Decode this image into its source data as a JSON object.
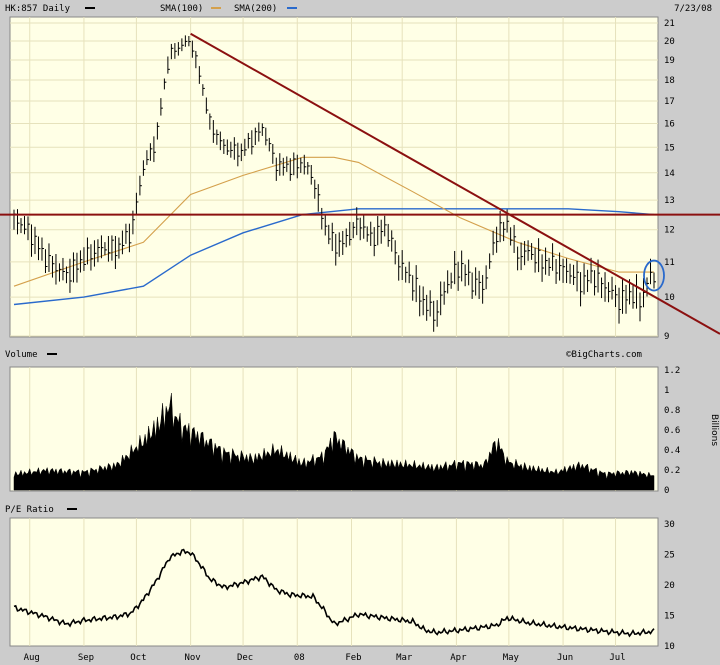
{
  "header": {
    "symbol_label": "HK:857 Daily",
    "sma100_label": "SMA(100)",
    "sma200_label": "SMA(200)",
    "date": "7/23/08",
    "watermark": "©BigCharts.com"
  },
  "colors": {
    "panel_bg": "#ffffe6",
    "frame_bg": "#cccccc",
    "price": "#000000",
    "sma100": "#d4a04c",
    "sma200": "#2a6acc",
    "trendline": "#8b1010",
    "highlight": "#2a6acc"
  },
  "volume_panel": {
    "label": "Volume",
    "unit_label": "Billions"
  },
  "pe_panel": {
    "label": "P/E Ratio"
  },
  "x_axis": {
    "months": [
      "Aug",
      "Sep",
      "Oct",
      "Nov",
      "Dec",
      "08",
      "Feb",
      "Mar",
      "Apr",
      "May",
      "Jun",
      "Jul"
    ]
  },
  "chart_data": [
    {
      "type": "line",
      "title": "HK:857 Daily",
      "ylim": [
        9,
        21
      ],
      "y_ticks": [
        "9",
        "10",
        "11",
        "12",
        "13",
        "14",
        "15",
        "16",
        "17",
        "18",
        "19",
        "20",
        "21"
      ],
      "scale": "log",
      "series": [
        {
          "name": "HK:857 Daily",
          "style": "ohlc",
          "x": [
            "Jul 23 07",
            "Aug 1",
            "Aug 10",
            "Aug 17",
            "Aug 22",
            "Sep 1",
            "Sep 10",
            "Sep 20",
            "Sep 28",
            "Oct 5",
            "Oct 12",
            "Oct 20",
            "Oct 27",
            "Nov 1",
            "Nov 6",
            "Nov 12",
            "Nov 20",
            "Nov 30",
            "Dec 7",
            "Dec 12",
            "Dec 20",
            "Dec 28",
            "Jan 4",
            "Jan 10",
            "Jan 16",
            "Jan 22",
            "Jan 28",
            "Feb 5",
            "Feb 12",
            "Feb 20",
            "Feb 28",
            "Mar 7",
            "Mar 14",
            "Mar 20",
            "Mar 25",
            "Apr 3",
            "Apr 10",
            "Apr 17",
            "Apr 24",
            "Apr 30",
            "May 6",
            "May 12",
            "May 20",
            "May 28",
            "Jun 4",
            "Jun 11",
            "Jun 18",
            "Jun 25",
            "Jul 3",
            "Jul 10",
            "Jul 15",
            "Jul 21",
            "Jul 23"
          ],
          "values": [
            12.4,
            11.9,
            11.1,
            10.8,
            10.6,
            11.1,
            11.4,
            11.4,
            11.9,
            14.2,
            15.2,
            19.3,
            19.8,
            20.0,
            18.3,
            16.0,
            15.0,
            14.8,
            15.4,
            15.8,
            14.3,
            14.2,
            14.4,
            13.8,
            12.2,
            11.5,
            11.6,
            12.3,
            11.7,
            12.1,
            11.0,
            10.4,
            9.8,
            9.5,
            10.2,
            10.9,
            10.4,
            10.3,
            11.9,
            12.2,
            11.2,
            11.3,
            11.0,
            10.9,
            10.7,
            10.4,
            10.6,
            10.3,
            9.9,
            10.1,
            9.9,
            10.6,
            10.5
          ]
        },
        {
          "name": "SMA(100)",
          "x": [
            "Jul 23 07",
            "Sep 1",
            "Oct 5",
            "Nov 1",
            "Dec 1",
            "Jan 4",
            "Jan 22",
            "Feb 5",
            "Mar 7",
            "Apr 3",
            "May 6",
            "Jun 4",
            "Jul 3",
            "Jul 23"
          ],
          "values": [
            10.3,
            11.0,
            11.6,
            13.2,
            13.9,
            14.6,
            14.6,
            14.4,
            13.3,
            12.4,
            11.6,
            11.1,
            10.7,
            10.7
          ]
        },
        {
          "name": "SMA(200)",
          "x": [
            "Jul 23 07",
            "Sep 1",
            "Oct 5",
            "Nov 1",
            "Dec 1",
            "Jan 4",
            "Feb 5",
            "Mar 7",
            "Apr 3",
            "May 6",
            "Jun 4",
            "Jul 3",
            "Jul 23"
          ],
          "values": [
            9.8,
            10.0,
            10.3,
            11.2,
            11.9,
            12.5,
            12.7,
            12.7,
            12.7,
            12.7,
            12.7,
            12.6,
            12.5
          ]
        }
      ],
      "annotations": [
        {
          "kind": "trendline",
          "from": [
            "Nov 1",
            20.4
          ],
          "to": [
            "Jul 30",
            9.3
          ]
        },
        {
          "kind": "horizontal",
          "value": 12.5
        },
        {
          "kind": "ellipse",
          "at": [
            "Jul 23",
            10.6
          ]
        }
      ]
    },
    {
      "type": "area",
      "title": "Volume",
      "ylabel": "Billions",
      "ylim": [
        0,
        1.2
      ],
      "y_ticks": [
        "0",
        "0.2",
        "0.4",
        "0.6",
        "0.8",
        "1",
        "1.2"
      ],
      "x": [
        "Jul 23 07",
        "Aug 10",
        "Sep 1",
        "Sep 20",
        "Oct 5",
        "Oct 12",
        "Oct 20",
        "Oct 27",
        "Nov 6",
        "Nov 20",
        "Dec 7",
        "Dec 20",
        "Jan 4",
        "Jan 16",
        "Jan 22",
        "Feb 5",
        "Feb 20",
        "Mar 7",
        "Mar 20",
        "Apr 3",
        "Apr 17",
        "Apr 24",
        "Apr 30",
        "May 12",
        "May 28",
        "Jun 11",
        "Jun 25",
        "Jul 10",
        "Jul 23"
      ],
      "values": [
        0.18,
        0.22,
        0.2,
        0.28,
        0.55,
        0.7,
        0.95,
        0.7,
        0.6,
        0.42,
        0.35,
        0.45,
        0.3,
        0.38,
        0.6,
        0.35,
        0.3,
        0.28,
        0.25,
        0.3,
        0.28,
        0.55,
        0.32,
        0.25,
        0.2,
        0.28,
        0.18,
        0.2,
        0.16
      ]
    },
    {
      "type": "line",
      "title": "P/E Ratio",
      "ylim": [
        10,
        30
      ],
      "y_ticks": [
        "10",
        "15",
        "20",
        "25",
        "30"
      ],
      "x": [
        "Jul 23 07",
        "Aug 10",
        "Aug 22",
        "Sep 1",
        "Sep 20",
        "Sep 28",
        "Oct 5",
        "Oct 12",
        "Oct 20",
        "Oct 27",
        "Nov 1",
        "Nov 6",
        "Nov 12",
        "Nov 20",
        "Nov 30",
        "Dec 12",
        "Dec 20",
        "Dec 28",
        "Jan 10",
        "Jan 16",
        "Jan 22",
        "Jan 28",
        "Feb 5",
        "Feb 20",
        "Mar 7",
        "Mar 14",
        "Mar 20",
        "Apr 3",
        "Apr 17",
        "Apr 24",
        "Apr 30",
        "May 12",
        "May 28",
        "Jun 11",
        "Jun 25",
        "Jul 10",
        "Jul 23"
      ],
      "values": [
        16.3,
        14.8,
        13.6,
        14.2,
        14.8,
        15.4,
        17.6,
        20.5,
        24.5,
        25.5,
        25.3,
        23.5,
        21.0,
        19.6,
        20.3,
        21.4,
        19.2,
        18.4,
        18.1,
        16.0,
        13.6,
        14.2,
        15.2,
        14.6,
        14.0,
        12.6,
        12.2,
        12.6,
        13.1,
        13.4,
        14.6,
        13.8,
        13.2,
        12.8,
        12.4,
        12.0,
        12.4
      ]
    }
  ]
}
